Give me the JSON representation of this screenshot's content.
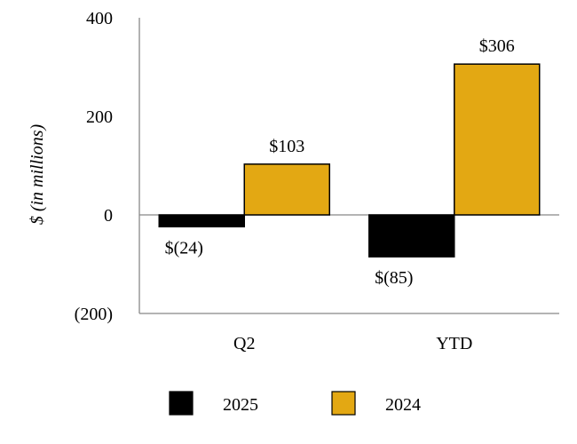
{
  "chart_data": {
    "type": "bar",
    "title": "",
    "xlabel": "",
    "ylabel": "$ (in millions)",
    "ylim": [
      -200,
      400
    ],
    "yticks": [
      400,
      200,
      0,
      -200
    ],
    "ytick_labels": [
      "400",
      "200",
      "0",
      "(200)"
    ],
    "categories": [
      "Q2",
      "YTD"
    ],
    "series": [
      {
        "name": "2025",
        "values": [
          -24,
          -85
        ],
        "labels": [
          "$(24)",
          "$(85)"
        ],
        "color": "#000000"
      },
      {
        "name": "2024",
        "values": [
          103,
          306
        ],
        "labels": [
          "$103",
          "$306"
        ],
        "color": "#e3a813"
      }
    ],
    "legend": "bottom",
    "grid": false
  }
}
